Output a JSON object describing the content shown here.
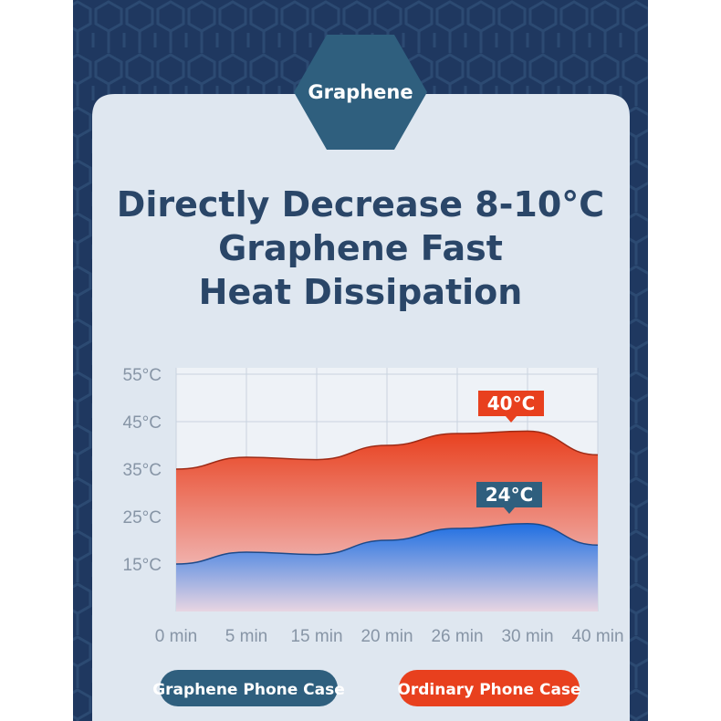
{
  "badge": "Graphene",
  "chart_data": {
    "type": "area",
    "title": [
      "Directly Decrease 8-10°C",
      "Graphene Fast",
      "Heat Dissipation"
    ],
    "categories": [
      "0 min",
      "5 min",
      "15 min",
      "20 min",
      "26 min",
      "30 min",
      "40 min"
    ],
    "series": [
      {
        "name": "Ordinary Phone Case",
        "color": "#e8401e",
        "values": [
          35,
          37.5,
          37,
          40,
          42.5,
          43,
          38
        ]
      },
      {
        "name": "Graphene Phone Case",
        "color": "#1f6fe2",
        "values": [
          15,
          17.5,
          17,
          20,
          22.5,
          23.5,
          19
        ]
      }
    ],
    "annotations": [
      "40°C",
      "24°C"
    ],
    "ylim": [
      5,
      55
    ],
    "yticks": [
      {
        "value": 55,
        "label": "55°C"
      },
      {
        "value": 45,
        "label": "45°C"
      },
      {
        "value": 35,
        "label": "35°C"
      },
      {
        "value": 25,
        "label": "25°C"
      },
      {
        "value": 15,
        "label": "15°C"
      }
    ],
    "grid": true
  }
}
